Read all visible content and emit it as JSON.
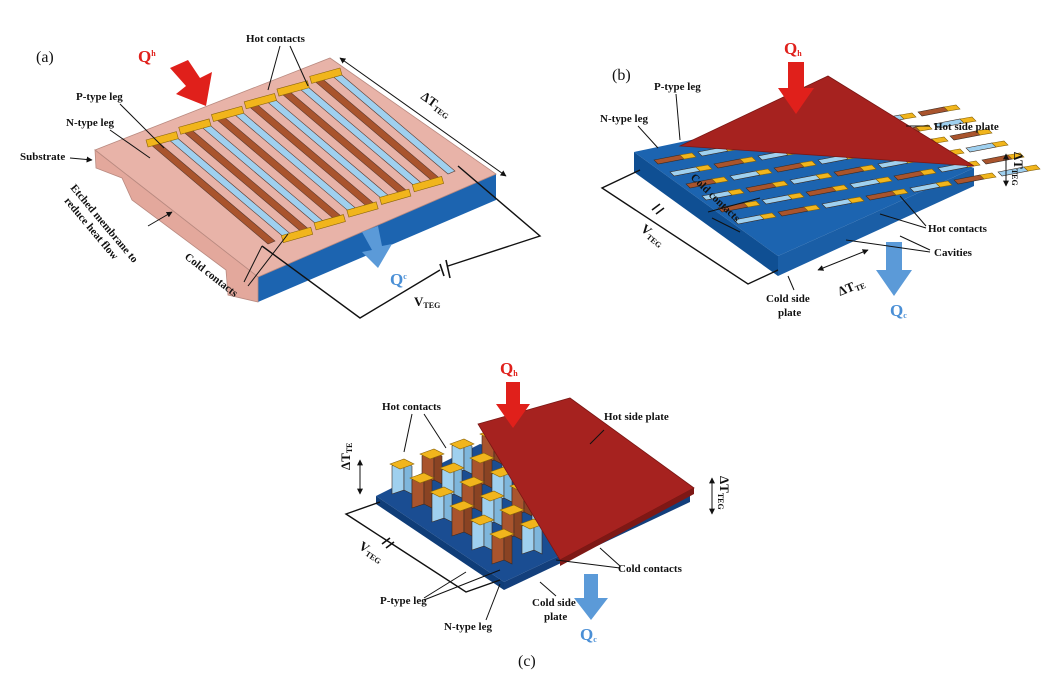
{
  "panels": {
    "a": {
      "tag": "(a)",
      "qh": "Q",
      "qh_sub": "h",
      "qc": "Q",
      "qc_sub": "c",
      "hot_contacts": "Hot contacts",
      "p_leg": "P-type leg",
      "n_leg": "N-type leg",
      "substrate": "Substrate",
      "membrane_line1": "Etched membrane to",
      "membrane_line2": "reduce heat flow",
      "cold_contacts": "Cold contacts",
      "delta_t": "ΔT",
      "delta_t_sub": "TEG",
      "v": "V",
      "v_sub": "TEG"
    },
    "b": {
      "tag": "(b)",
      "qh": "Q",
      "qh_sub": "h",
      "qc": "Q",
      "qc_sub": "c",
      "p_leg": "P-type leg",
      "n_leg": "N-type leg",
      "hot_side_plate": "Hot side plate",
      "delta_t": "ΔT",
      "delta_t_sub": "TEG",
      "cold_contacts": "Cold contacts",
      "hot_contacts": "Hot contacts",
      "cavities": "Cavities",
      "v": "V",
      "v_sub": "TEG",
      "delta_te": "ΔT",
      "delta_te_sub": "TE",
      "cold_side_plate_line1": "Cold side",
      "cold_side_plate_line2": "plate"
    },
    "c": {
      "tag": "(c)",
      "qh": "Q",
      "qh_sub": "h",
      "qc": "Q",
      "qc_sub": "c",
      "hot_contacts": "Hot contacts",
      "hot_side_plate": "Hot side plate",
      "delta_te": "ΔT",
      "delta_te_sub": "TE",
      "delta_t": "ΔT",
      "delta_t_sub": "TEG",
      "v": "V",
      "v_sub": "TEG",
      "cold_contacts": "Cold contacts",
      "p_leg": "P-type leg",
      "n_leg": "N-type leg",
      "cold_side_plate_line1": "Cold side",
      "cold_side_plate_line2": "plate"
    }
  },
  "colors": {
    "substrate": "#e8b3a8",
    "base_blue": "#1c64b0",
    "p_leg": "#a9542d",
    "n_leg": "#9fd0ef",
    "contact": "#f1b51c",
    "hot_plate": "#a6221f",
    "qh_arrow": "#e0201b",
    "qc_arrow": "#5b9ad8"
  }
}
